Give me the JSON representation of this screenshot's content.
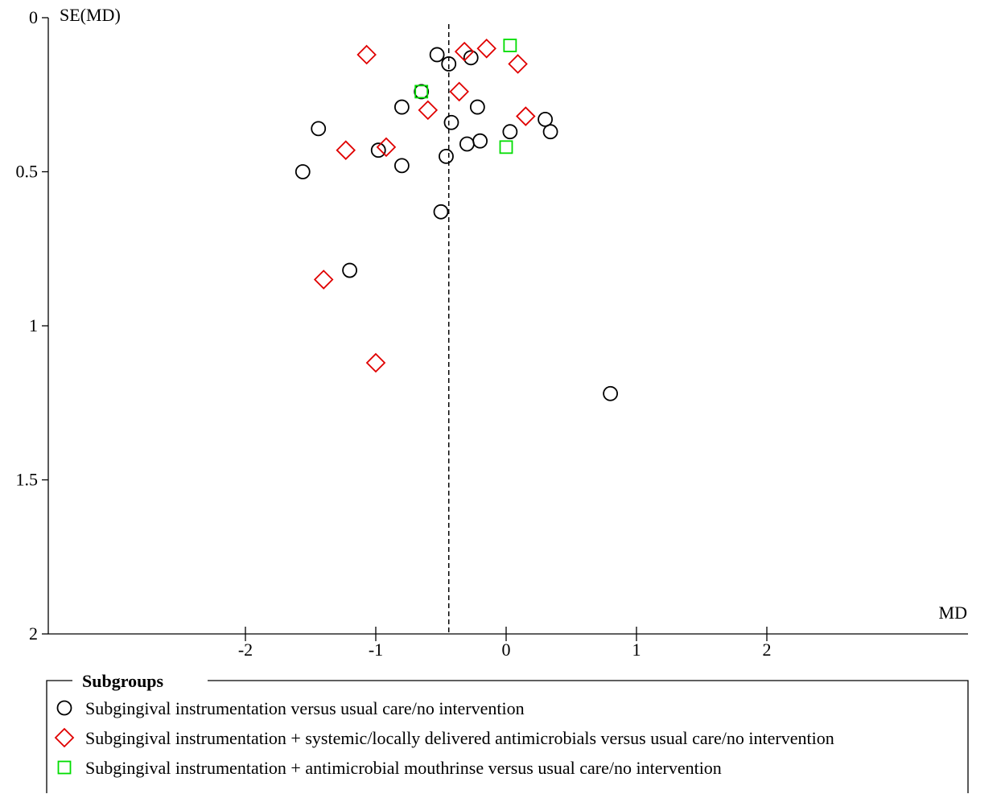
{
  "chart_data": {
    "type": "scatter",
    "title": "",
    "xlabel": "MD",
    "ylabel": "SE(MD)",
    "xlim": [
      -3.1,
      3.5
    ],
    "ylim": [
      0,
      2
    ],
    "y_inverted": true,
    "x_ticks": [
      "-2",
      "-1",
      "0",
      "1",
      "2"
    ],
    "y_ticks": [
      "0",
      "0.5",
      "1",
      "1.5",
      "2"
    ],
    "pooled_estimate_line": -0.44,
    "grid": false,
    "legend": {
      "title": "Subgroups",
      "placement": "bottom"
    },
    "series": [
      {
        "name": "Subgingival instrumentation versus usual care/no intervention",
        "marker": "circle",
        "color": "#000000",
        "points": [
          {
            "x": -0.53,
            "y": 0.12
          },
          {
            "x": -0.44,
            "y": 0.15
          },
          {
            "x": -0.27,
            "y": 0.13
          },
          {
            "x": -0.65,
            "y": 0.24
          },
          {
            "x": -0.8,
            "y": 0.29
          },
          {
            "x": -0.22,
            "y": 0.29
          },
          {
            "x": -1.44,
            "y": 0.36
          },
          {
            "x": -0.42,
            "y": 0.34
          },
          {
            "x": 0.03,
            "y": 0.37
          },
          {
            "x": 0.3,
            "y": 0.33
          },
          {
            "x": 0.34,
            "y": 0.37
          },
          {
            "x": -0.3,
            "y": 0.41
          },
          {
            "x": -0.2,
            "y": 0.4
          },
          {
            "x": -0.98,
            "y": 0.43
          },
          {
            "x": -0.46,
            "y": 0.45
          },
          {
            "x": -0.8,
            "y": 0.48
          },
          {
            "x": -1.56,
            "y": 0.5
          },
          {
            "x": -0.5,
            "y": 0.63
          },
          {
            "x": -1.2,
            "y": 0.82
          },
          {
            "x": 0.8,
            "y": 1.22
          }
        ]
      },
      {
        "name": "Subgingival instrumentation + systemic/locally delivered antimicrobials versus usual care/no intervention",
        "marker": "diamond",
        "color": "#e00000",
        "points": [
          {
            "x": -1.07,
            "y": 0.12
          },
          {
            "x": -0.32,
            "y": 0.11
          },
          {
            "x": -0.15,
            "y": 0.1
          },
          {
            "x": 0.09,
            "y": 0.15
          },
          {
            "x": -0.36,
            "y": 0.24
          },
          {
            "x": -0.6,
            "y": 0.3
          },
          {
            "x": 0.15,
            "y": 0.32
          },
          {
            "x": -1.23,
            "y": 0.43
          },
          {
            "x": -0.92,
            "y": 0.42
          },
          {
            "x": -1.4,
            "y": 0.85
          },
          {
            "x": -1.0,
            "y": 1.12
          }
        ]
      },
      {
        "name": "Subgingival instrumentation + antimicrobial mouthrinse versus usual care/no intervention",
        "marker": "square",
        "color": "#00dd00",
        "points": [
          {
            "x": 0.03,
            "y": 0.09
          },
          {
            "x": -0.65,
            "y": 0.24
          },
          {
            "x": 0.0,
            "y": 0.42
          }
        ]
      }
    ]
  }
}
